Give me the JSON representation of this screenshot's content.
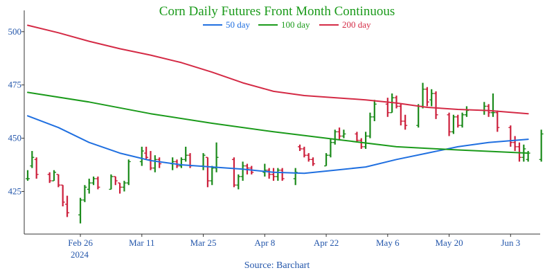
{
  "chart_data": {
    "type": "line",
    "title": "Corn Daily Futures Front Month Continuous",
    "source": "Source: Barchart",
    "xlabel": "",
    "ylabel": "",
    "ylim": [
      405,
      510
    ],
    "yticks": [
      425,
      450,
      475,
      500
    ],
    "xlim": [
      "2024-02-14",
      "2024-06-08"
    ],
    "xticks": [
      {
        "date": "2024-02-26",
        "label": "Feb 26"
      },
      {
        "date": "2024-03-11",
        "label": "Mar 11"
      },
      {
        "date": "2024-03-25",
        "label": "Mar 25"
      },
      {
        "date": "2024-04-08",
        "label": "Apr 8"
      },
      {
        "date": "2024-04-22",
        "label": "Apr 22"
      },
      {
        "date": "2024-05-06",
        "label": "May 6"
      },
      {
        "date": "2024-05-20",
        "label": "May 20"
      },
      {
        "date": "2024-06-03",
        "label": "Jun 3"
      }
    ],
    "year_label": "2024",
    "grid": false,
    "legend_position": "top-center",
    "colors": {
      "title": "#1a9a1a",
      "up": "#1a8a1a",
      "down": "#cc1f3b",
      "axis": "#333333",
      "ticks": "#2255aa"
    },
    "series": [
      {
        "name": "50 day",
        "color": "#1f6fe0",
        "points": [
          [
            "2024-02-14",
            460.5
          ],
          [
            "2024-02-21",
            455
          ],
          [
            "2024-02-28",
            448
          ],
          [
            "2024-03-06",
            443
          ],
          [
            "2024-03-13",
            439.5
          ],
          [
            "2024-03-20",
            437.5
          ],
          [
            "2024-03-27",
            436.5
          ],
          [
            "2024-04-03",
            435.5
          ],
          [
            "2024-04-10",
            434
          ],
          [
            "2024-04-17",
            433.5
          ],
          [
            "2024-04-24",
            435
          ],
          [
            "2024-05-01",
            436.5
          ],
          [
            "2024-05-08",
            440
          ],
          [
            "2024-05-15",
            443
          ],
          [
            "2024-05-22",
            446
          ],
          [
            "2024-05-29",
            448
          ],
          [
            "2024-06-07",
            449.5
          ]
        ]
      },
      {
        "name": "100 day",
        "color": "#1a9a1a",
        "points": [
          [
            "2024-02-14",
            471.5
          ],
          [
            "2024-02-28",
            467
          ],
          [
            "2024-03-13",
            461.5
          ],
          [
            "2024-03-27",
            457
          ],
          [
            "2024-04-10",
            453
          ],
          [
            "2024-04-24",
            449.5
          ],
          [
            "2024-05-08",
            446
          ],
          [
            "2024-05-22",
            444.5
          ],
          [
            "2024-06-07",
            443
          ]
        ]
      },
      {
        "name": "200 day",
        "color": "#d42a45",
        "points": [
          [
            "2024-02-14",
            503
          ],
          [
            "2024-02-21",
            499.5
          ],
          [
            "2024-02-28",
            495.5
          ],
          [
            "2024-03-06",
            492
          ],
          [
            "2024-03-13",
            489
          ],
          [
            "2024-03-20",
            485.5
          ],
          [
            "2024-03-27",
            481
          ],
          [
            "2024-04-03",
            476
          ],
          [
            "2024-04-10",
            472
          ],
          [
            "2024-04-17",
            470
          ],
          [
            "2024-04-24",
            469
          ],
          [
            "2024-05-01",
            468
          ],
          [
            "2024-05-08",
            466.5
          ],
          [
            "2024-05-15",
            464.5
          ],
          [
            "2024-05-22",
            463.5
          ],
          [
            "2024-05-29",
            463
          ],
          [
            "2024-06-07",
            461.5
          ]
        ]
      }
    ],
    "ohlc": [
      [
        "2024-02-14",
        431,
        435,
        430,
        431
      ],
      [
        "2024-02-15",
        437,
        444,
        436,
        441
      ],
      [
        "2024-02-16",
        440,
        441,
        431,
        433
      ],
      [
        "2024-02-19",
        433,
        434,
        429,
        430
      ],
      [
        "2024-02-20",
        430,
        435,
        430,
        434
      ],
      [
        "2024-02-21",
        433,
        433,
        427,
        428
      ],
      [
        "2024-02-22",
        428,
        428,
        418,
        420
      ],
      [
        "2024-02-23",
        419,
        423,
        413,
        415
      ],
      [
        "2024-02-26",
        414,
        422,
        410,
        421
      ],
      [
        "2024-02-27",
        421,
        428,
        420,
        427
      ],
      [
        "2024-02-28",
        426,
        431,
        424,
        429
      ],
      [
        "2024-02-29",
        429,
        432,
        428,
        431
      ],
      [
        "2024-03-01",
        431,
        432,
        426,
        427
      ],
      [
        "2024-03-04",
        426,
        433,
        426,
        432
      ],
      [
        "2024-03-05",
        432,
        432,
        428,
        430
      ],
      [
        "2024-03-06",
        429,
        429,
        424,
        427
      ],
      [
        "2024-03-07",
        427,
        430,
        425,
        429
      ],
      [
        "2024-03-08",
        429,
        440,
        428,
        439
      ],
      [
        "2024-03-11",
        439,
        446,
        437,
        444
      ],
      [
        "2024-03-12",
        443,
        446,
        440,
        441
      ],
      [
        "2024-03-13",
        440,
        444,
        435,
        436
      ],
      [
        "2024-03-14",
        436,
        442,
        434,
        440
      ],
      [
        "2024-03-15",
        440,
        441,
        436,
        438
      ],
      [
        "2024-03-18",
        438,
        441,
        435,
        439
      ],
      [
        "2024-03-19",
        439,
        440,
        436,
        437
      ],
      [
        "2024-03-20",
        437,
        441,
        436,
        440
      ],
      [
        "2024-03-21",
        440,
        446,
        439,
        442
      ],
      [
        "2024-03-22",
        442,
        443,
        436,
        437
      ],
      [
        "2024-03-25",
        437,
        443,
        435,
        442
      ],
      [
        "2024-03-26",
        441,
        441,
        427,
        430
      ],
      [
        "2024-03-27",
        430,
        437,
        428,
        436
      ],
      [
        "2024-03-28",
        436,
        448,
        434,
        441
      ],
      [
        "2024-04-01",
        440,
        441,
        427,
        428
      ],
      [
        "2024-04-02",
        428,
        433,
        426,
        432
      ],
      [
        "2024-04-03",
        432,
        439,
        430,
        437
      ],
      [
        "2024-04-04",
        437,
        438,
        433,
        436
      ],
      [
        "2024-04-05",
        436,
        437,
        433,
        434
      ],
      [
        "2024-04-08",
        434,
        438,
        432,
        435
      ],
      [
        "2024-04-09",
        435,
        436,
        431,
        433
      ],
      [
        "2024-04-10",
        433,
        436,
        430,
        432
      ],
      [
        "2024-04-11",
        432,
        436,
        430,
        435
      ],
      [
        "2024-04-12",
        435,
        436,
        430,
        431
      ],
      [
        "2024-04-15",
        431,
        436,
        428,
        434
      ],
      [
        "2024-04-16",
        446,
        447,
        444,
        445
      ],
      [
        "2024-04-17",
        445,
        446,
        441,
        442
      ],
      [
        "2024-04-18",
        442,
        443,
        439,
        440
      ],
      [
        "2024-04-19",
        440,
        441,
        437,
        438
      ],
      [
        "2024-04-22",
        437,
        443,
        437,
        442
      ],
      [
        "2024-04-23",
        442,
        450,
        441,
        448
      ],
      [
        "2024-04-24",
        448,
        454,
        447,
        453
      ],
      [
        "2024-04-25",
        453,
        455,
        449,
        451
      ],
      [
        "2024-04-26",
        451,
        454,
        450,
        452
      ],
      [
        "2024-04-29",
        452,
        453,
        448,
        449
      ],
      [
        "2024-04-30",
        449,
        450,
        445,
        446
      ],
      [
        "2024-05-01",
        446,
        453,
        445,
        451
      ],
      [
        "2024-05-02",
        451,
        462,
        450,
        460
      ],
      [
        "2024-05-03",
        460,
        468,
        458,
        466
      ],
      [
        "2024-05-06",
        466,
        469,
        460,
        462
      ],
      [
        "2024-05-07",
        462,
        471,
        462,
        469
      ],
      [
        "2024-05-08",
        469,
        470,
        464,
        465
      ],
      [
        "2024-05-09",
        465,
        466,
        456,
        458
      ],
      [
        "2024-05-10",
        458,
        461,
        454,
        456
      ],
      [
        "2024-05-13",
        456,
        466,
        455,
        465
      ],
      [
        "2024-05-14",
        465,
        476,
        464,
        473
      ],
      [
        "2024-05-15",
        473,
        474,
        465,
        467
      ],
      [
        "2024-05-16",
        468,
        473,
        465,
        471
      ],
      [
        "2024-05-17",
        471,
        472,
        459,
        461
      ],
      [
        "2024-05-20",
        461,
        462,
        451,
        453
      ],
      [
        "2024-05-21",
        453,
        461,
        452,
        460
      ],
      [
        "2024-05-22",
        460,
        461,
        455,
        456
      ],
      [
        "2024-05-23",
        456,
        462,
        455,
        461
      ],
      [
        "2024-05-24",
        461,
        465,
        460,
        463
      ],
      [
        "2024-05-28",
        463,
        467,
        461,
        465
      ],
      [
        "2024-05-29",
        465,
        466,
        460,
        462
      ],
      [
        "2024-05-30",
        462,
        471,
        460,
        462
      ],
      [
        "2024-05-31",
        462,
        463,
        453,
        455
      ],
      [
        "2024-06-03",
        455,
        456,
        446,
        448
      ],
      [
        "2024-06-04",
        448,
        451,
        444,
        446
      ],
      [
        "2024-06-05",
        446,
        448,
        439,
        441
      ],
      [
        "2024-06-06",
        441,
        447,
        439,
        445
      ],
      [
        "2024-06-07",
        440,
        444,
        439,
        443
      ],
      [
        "2024-06-10",
        440,
        454,
        439,
        452
      ]
    ]
  }
}
